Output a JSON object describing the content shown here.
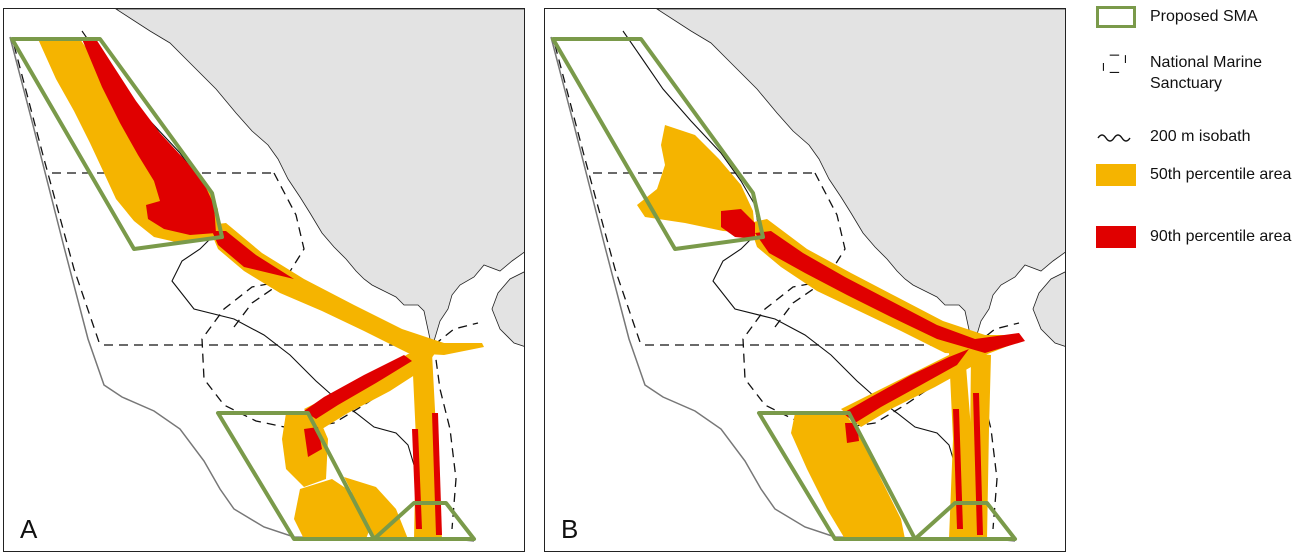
{
  "panels": [
    {
      "label": "A"
    },
    {
      "label": "B"
    }
  ],
  "legend": [
    {
      "label": "Proposed SMA",
      "symbol": "sma-outline"
    },
    {
      "label": "National Marine Sanctuary",
      "symbol": "dashed-boundary"
    },
    {
      "label": "200 m isobath",
      "symbol": "wavy-line"
    },
    {
      "label": "50th percentile area",
      "symbol": "fill"
    },
    {
      "label": "90th percentile area",
      "symbol": "fill"
    }
  ],
  "colors": {
    "sma": "#7a9a4a",
    "p50": "#f5b400",
    "p90": "#e00000",
    "land": "#e3e3e3",
    "boundary": "#111111",
    "study_area": "#777777"
  }
}
